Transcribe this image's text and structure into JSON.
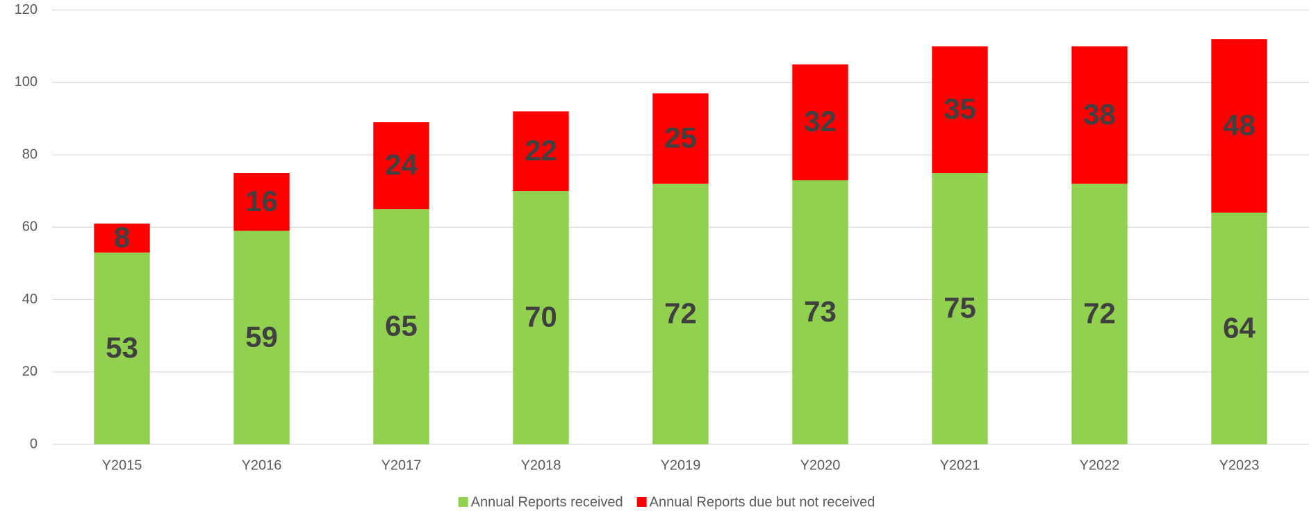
{
  "chart_data": {
    "type": "stacked_bar",
    "categories": [
      "Y2015",
      "Y2016",
      "Y2017",
      "Y2018",
      "Y2019",
      "Y2020",
      "Y2021",
      "Y2022",
      "Y2023"
    ],
    "series": [
      {
        "name": "Annual Reports received",
        "color": "#92d050",
        "values": [
          53,
          59,
          65,
          70,
          72,
          73,
          75,
          72,
          64
        ]
      },
      {
        "name": "Annual Reports due but not received",
        "color": "#ff0000",
        "values": [
          8,
          16,
          24,
          22,
          25,
          32,
          35,
          38,
          48
        ]
      }
    ],
    "ylim": [
      0,
      120
    ],
    "yticks": [
      0,
      20,
      40,
      60,
      80,
      100,
      120
    ],
    "grid": true,
    "legend": "bottom"
  }
}
